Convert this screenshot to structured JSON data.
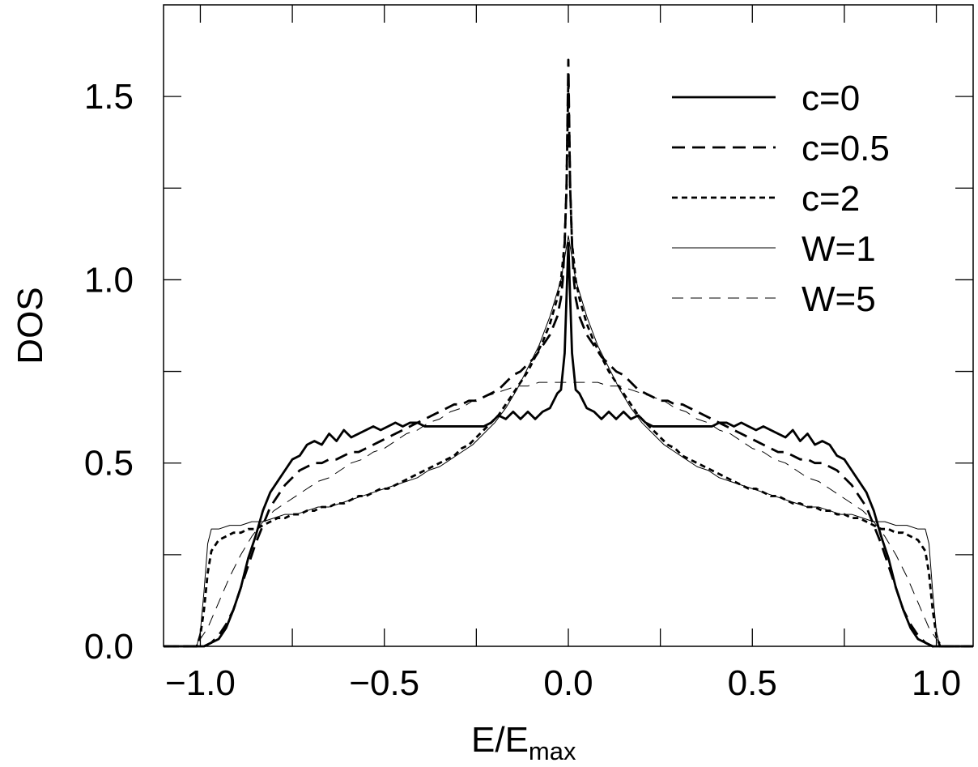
{
  "chart_data": {
    "type": "line",
    "xlabel": "E/E",
    "xlabel_sub": "max",
    "ylabel": "DOS",
    "xlim": [
      -1.1,
      1.1
    ],
    "ylim": [
      0.0,
      1.75
    ],
    "x_ticks": [
      -1.0,
      -0.75,
      -0.5,
      -0.25,
      0.0,
      0.25,
      0.5,
      0.75,
      1.0
    ],
    "x_tick_labels": [
      "−1.0",
      "",
      "−0.5",
      "",
      "0.0",
      "",
      "0.5",
      "",
      "1.0"
    ],
    "y_ticks": [
      0.0,
      0.25,
      0.5,
      0.75,
      1.0,
      1.25,
      1.5
    ],
    "y_tick_labels": [
      "0.0",
      "",
      "0.5",
      "",
      "1.0",
      "",
      "1.5"
    ],
    "grid": false,
    "legend_position": "top-right",
    "series": [
      {
        "name": "c=0",
        "style": "solid-thick",
        "x": [
          0.0,
          0.005,
          0.01,
          0.015,
          0.02,
          0.03,
          0.05,
          0.07,
          0.09,
          0.11,
          0.13,
          0.15,
          0.17,
          0.19,
          0.21,
          0.23,
          0.25,
          0.27,
          0.29,
          0.31,
          0.33,
          0.35,
          0.37,
          0.39,
          0.41,
          0.43,
          0.45,
          0.47,
          0.49,
          0.51,
          0.53,
          0.55,
          0.57,
          0.59,
          0.61,
          0.63,
          0.65,
          0.67,
          0.69,
          0.71,
          0.73,
          0.75,
          0.77,
          0.79,
          0.81,
          0.83,
          0.85,
          0.87,
          0.89,
          0.91,
          0.93,
          0.95,
          0.97,
          0.99,
          1.01,
          1.04,
          1.1
        ],
        "values": [
          1.1,
          0.95,
          0.8,
          0.75,
          0.7,
          0.69,
          0.65,
          0.64,
          0.62,
          0.64,
          0.62,
          0.64,
          0.62,
          0.63,
          0.61,
          0.6,
          0.6,
          0.6,
          0.6,
          0.6,
          0.6,
          0.6,
          0.6,
          0.6,
          0.61,
          0.61,
          0.6,
          0.61,
          0.6,
          0.59,
          0.6,
          0.59,
          0.58,
          0.57,
          0.59,
          0.56,
          0.58,
          0.55,
          0.56,
          0.55,
          0.52,
          0.51,
          0.48,
          0.45,
          0.42,
          0.37,
          0.3,
          0.24,
          0.16,
          0.1,
          0.05,
          0.02,
          0.01,
          0.0,
          0.0,
          0.0,
          0.0
        ]
      },
      {
        "name": "c=0.5",
        "style": "dashed-thick",
        "x": [
          0.0,
          0.005,
          0.01,
          0.015,
          0.02,
          0.03,
          0.05,
          0.07,
          0.09,
          0.11,
          0.13,
          0.15,
          0.17,
          0.19,
          0.21,
          0.23,
          0.25,
          0.27,
          0.29,
          0.31,
          0.33,
          0.35,
          0.37,
          0.39,
          0.41,
          0.43,
          0.45,
          0.47,
          0.49,
          0.51,
          0.53,
          0.55,
          0.57,
          0.59,
          0.61,
          0.63,
          0.65,
          0.67,
          0.69,
          0.71,
          0.73,
          0.75,
          0.77,
          0.79,
          0.81,
          0.83,
          0.85,
          0.87,
          0.89,
          0.91,
          0.93,
          0.95,
          0.97,
          0.99,
          1.01,
          1.04,
          1.1
        ],
        "values": [
          1.6,
          1.25,
          1.1,
          1.0,
          0.95,
          0.9,
          0.85,
          0.82,
          0.79,
          0.77,
          0.75,
          0.74,
          0.72,
          0.7,
          0.69,
          0.68,
          0.67,
          0.67,
          0.66,
          0.66,
          0.65,
          0.64,
          0.63,
          0.62,
          0.61,
          0.6,
          0.59,
          0.58,
          0.57,
          0.56,
          0.55,
          0.54,
          0.53,
          0.53,
          0.52,
          0.51,
          0.51,
          0.5,
          0.5,
          0.49,
          0.48,
          0.46,
          0.44,
          0.41,
          0.38,
          0.33,
          0.28,
          0.22,
          0.16,
          0.1,
          0.06,
          0.03,
          0.01,
          0.0,
          0.0,
          0.0,
          0.0
        ]
      },
      {
        "name": "c=2",
        "style": "dotted-thick",
        "x": [
          0.0,
          0.005,
          0.01,
          0.015,
          0.02,
          0.03,
          0.05,
          0.07,
          0.09,
          0.11,
          0.13,
          0.15,
          0.17,
          0.19,
          0.21,
          0.23,
          0.25,
          0.27,
          0.29,
          0.31,
          0.33,
          0.35,
          0.37,
          0.39,
          0.41,
          0.43,
          0.45,
          0.47,
          0.49,
          0.51,
          0.53,
          0.55,
          0.57,
          0.59,
          0.61,
          0.63,
          0.65,
          0.67,
          0.69,
          0.71,
          0.73,
          0.75,
          0.77,
          0.79,
          0.81,
          0.83,
          0.85,
          0.87,
          0.89,
          0.91,
          0.93,
          0.95,
          0.97,
          0.98,
          0.99,
          1.0,
          1.01,
          1.04,
          1.1
        ],
        "values": [
          1.55,
          1.25,
          1.1,
          1.05,
          1.0,
          0.95,
          0.88,
          0.83,
          0.79,
          0.75,
          0.72,
          0.69,
          0.66,
          0.63,
          0.61,
          0.59,
          0.57,
          0.55,
          0.54,
          0.52,
          0.51,
          0.5,
          0.49,
          0.48,
          0.47,
          0.46,
          0.45,
          0.44,
          0.43,
          0.43,
          0.42,
          0.41,
          0.41,
          0.4,
          0.39,
          0.39,
          0.38,
          0.38,
          0.37,
          0.37,
          0.36,
          0.36,
          0.35,
          0.35,
          0.34,
          0.33,
          0.32,
          0.32,
          0.31,
          0.31,
          0.3,
          0.29,
          0.26,
          0.2,
          0.1,
          0.03,
          0.0,
          0.0,
          0.0
        ]
      },
      {
        "name": "W=1",
        "style": "solid-thin",
        "x": [
          0.0,
          0.02,
          0.05,
          0.08,
          0.11,
          0.14,
          0.17,
          0.2,
          0.23,
          0.26,
          0.29,
          0.32,
          0.35,
          0.38,
          0.41,
          0.44,
          0.47,
          0.5,
          0.53,
          0.56,
          0.59,
          0.62,
          0.65,
          0.68,
          0.71,
          0.74,
          0.77,
          0.8,
          0.83,
          0.86,
          0.89,
          0.92,
          0.95,
          0.97,
          0.98,
          0.99,
          1.0,
          1.01,
          1.04,
          1.1
        ],
        "values": [
          1.12,
          1.0,
          0.9,
          0.82,
          0.76,
          0.7,
          0.65,
          0.61,
          0.58,
          0.55,
          0.53,
          0.51,
          0.49,
          0.48,
          0.46,
          0.45,
          0.44,
          0.43,
          0.42,
          0.41,
          0.4,
          0.39,
          0.38,
          0.38,
          0.37,
          0.36,
          0.36,
          0.35,
          0.34,
          0.34,
          0.33,
          0.33,
          0.32,
          0.32,
          0.28,
          0.15,
          0.04,
          0.0,
          0.0,
          0.0
        ]
      },
      {
        "name": "W=5",
        "style": "dashed-thin",
        "x": [
          0.0,
          0.02,
          0.05,
          0.08,
          0.11,
          0.14,
          0.17,
          0.2,
          0.23,
          0.26,
          0.29,
          0.32,
          0.35,
          0.38,
          0.41,
          0.44,
          0.47,
          0.5,
          0.53,
          0.56,
          0.59,
          0.62,
          0.65,
          0.68,
          0.71,
          0.74,
          0.77,
          0.8,
          0.83,
          0.86,
          0.89,
          0.92,
          0.95,
          0.98,
          1.0,
          1.02,
          1.05,
          1.1
        ],
        "values": [
          0.72,
          0.72,
          0.72,
          0.72,
          0.71,
          0.71,
          0.7,
          0.69,
          0.68,
          0.67,
          0.65,
          0.64,
          0.62,
          0.61,
          0.59,
          0.58,
          0.56,
          0.54,
          0.53,
          0.51,
          0.5,
          0.48,
          0.46,
          0.45,
          0.43,
          0.41,
          0.39,
          0.37,
          0.34,
          0.3,
          0.25,
          0.19,
          0.12,
          0.05,
          0.02,
          0.0,
          0.0,
          0.0
        ]
      }
    ]
  }
}
